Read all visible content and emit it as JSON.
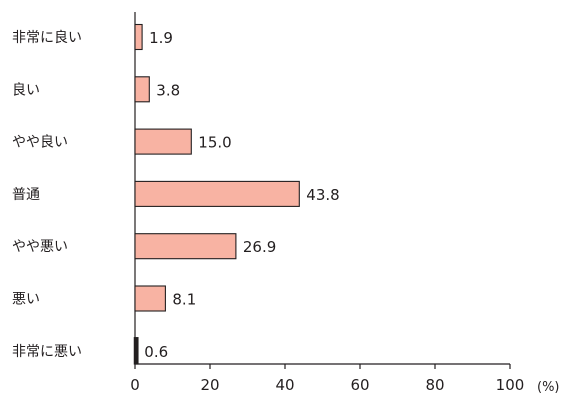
{
  "chart_data": {
    "type": "bar",
    "orientation": "horizontal",
    "categories": [
      "非常に良い",
      "良い",
      "やや良い",
      "普通",
      "やや悪い",
      "悪い",
      "非常に悪い"
    ],
    "values": [
      1.9,
      3.8,
      15.0,
      43.8,
      26.9,
      8.1,
      0.6
    ],
    "value_labels": [
      "1.9",
      "3.8",
      "15.0",
      "43.8",
      "26.9",
      "8.1",
      "0.6"
    ],
    "title": "",
    "xlabel": "",
    "ylabel": "",
    "unit": "(%)",
    "xlim": [
      0,
      100
    ],
    "xticks": [
      "0",
      "20",
      "40",
      "60",
      "80",
      "100"
    ],
    "grid": false,
    "bar_color": "#f8b3a3",
    "bar_edge_color": "#231f20"
  }
}
